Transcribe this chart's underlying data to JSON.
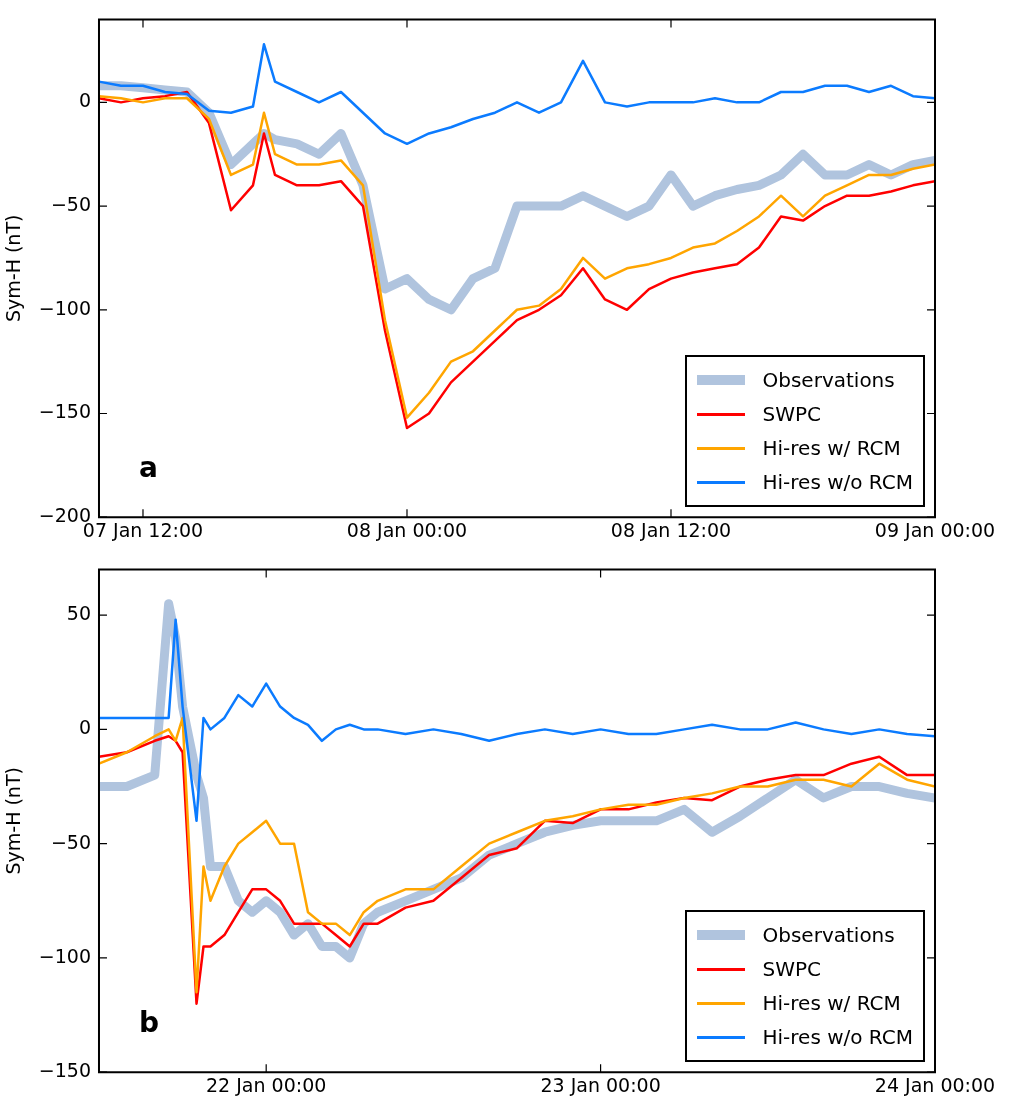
{
  "chart_data": [
    {
      "type": "line",
      "ylabel": "Sym-H (nT)",
      "annotations": [
        "a"
      ],
      "legend": "bottom right",
      "grid": false,
      "marker": "none",
      "line_style": "solid",
      "x": [
        "--01-07T10:00",
        "--01-07T11:00",
        "--01-07T12:00",
        "--01-07T13:00",
        "--01-07T14:00",
        "--01-07T15:00",
        "--01-07T16:00",
        "--01-07T17:00",
        "--01-07T17:30",
        "--01-07T18:00",
        "--01-07T19:00",
        "--01-07T20:00",
        "--01-07T21:00",
        "--01-07T22:00",
        "--01-07T23:00",
        "--01-08T00:00",
        "--01-08T01:00",
        "--01-08T02:00",
        "--01-08T03:00",
        "--01-08T04:00",
        "--01-08T05:00",
        "--01-08T06:00",
        "--01-08T07:00",
        "--01-08T08:00",
        "--01-08T09:00",
        "--01-08T10:00",
        "--01-08T11:00",
        "--01-08T12:00",
        "--01-08T13:00",
        "--01-08T14:00",
        "--01-08T15:00",
        "--01-08T16:00",
        "--01-08T17:00",
        "--01-08T18:00",
        "--01-08T19:00",
        "--01-08T20:00",
        "--01-08T21:00",
        "--01-08T22:00",
        "--01-08T23:00",
        "--01-09T00:00"
      ],
      "xlim": [
        "--01-07T10:00",
        "--01-09T00:00"
      ],
      "xticks": [
        {
          "value": "--01-07T12:00",
          "label": "07 Jan 12:00"
        },
        {
          "value": "--01-08T00:00",
          "label": "08 Jan 00:00"
        },
        {
          "value": "--01-08T12:00",
          "label": "08 Jan 12:00"
        },
        {
          "value": "--01-09T00:00",
          "label": "09 Jan 00:00"
        }
      ],
      "ylim": [
        -200,
        40
      ],
      "yticks": [
        -200,
        -150,
        -100,
        -50,
        0
      ],
      "series": [
        {
          "name": "Observations",
          "color": "#b0c4de",
          "values": [
            8,
            8,
            7,
            6,
            5,
            -5,
            -30,
            -20,
            -15,
            -18,
            -20,
            -25,
            -15,
            -40,
            -90,
            -85,
            -95,
            -100,
            -85,
            -80,
            -50,
            -50,
            -50,
            -45,
            -50,
            -55,
            -50,
            -35,
            -50,
            -45,
            -42,
            -40,
            -35,
            -25,
            -35,
            -35,
            -30,
            -35,
            -30,
            -28
          ]
        },
        {
          "name": "SWPC",
          "color": "#ff0000",
          "values": [
            2,
            0,
            2,
            3,
            5,
            -10,
            -52,
            -40,
            -15,
            -35,
            -40,
            -40,
            -38,
            -50,
            -110,
            -157,
            -150,
            -135,
            -125,
            -115,
            -105,
            -100,
            -93,
            -80,
            -95,
            -100,
            -90,
            -85,
            -82,
            -80,
            -78,
            -70,
            -55,
            -57,
            -50,
            -45,
            -45,
            -43,
            -40,
            -38
          ]
        },
        {
          "name": "Hi-res w/ RCM",
          "color": "#ffa500",
          "values": [
            3,
            2,
            0,
            2,
            2,
            -8,
            -35,
            -30,
            -5,
            -25,
            -30,
            -30,
            -28,
            -40,
            -105,
            -152,
            -140,
            -125,
            -120,
            -110,
            -100,
            -98,
            -90,
            -75,
            -85,
            -80,
            -78,
            -75,
            -70,
            -68,
            -62,
            -55,
            -45,
            -55,
            -45,
            -40,
            -35,
            -35,
            -32,
            -30
          ]
        },
        {
          "name": "Hi-res w/o RCM",
          "color": "#0b7bff",
          "values": [
            10,
            8,
            8,
            5,
            4,
            -4,
            -5,
            -2,
            28,
            10,
            5,
            0,
            5,
            -5,
            -15,
            -20,
            -15,
            -12,
            -8,
            -5,
            0,
            -5,
            0,
            20,
            0,
            -2,
            0,
            0,
            0,
            2,
            0,
            0,
            5,
            5,
            8,
            8,
            5,
            8,
            3,
            2
          ]
        }
      ]
    },
    {
      "type": "line",
      "ylabel": "Sym-H (nT)",
      "annotations": [
        "b"
      ],
      "legend": "bottom right",
      "grid": false,
      "marker": "none",
      "line_style": "solid",
      "x": [
        "--01-21T12:00",
        "--01-21T14:00",
        "--01-21T16:00",
        "--01-21T17:00",
        "--01-21T17:30",
        "--01-21T18:00",
        "--01-21T19:00",
        "--01-21T19:30",
        "--01-21T20:00",
        "--01-21T21:00",
        "--01-21T22:00",
        "--01-21T23:00",
        "--01-22T00:00",
        "--01-22T01:00",
        "--01-22T02:00",
        "--01-22T03:00",
        "--01-22T04:00",
        "--01-22T05:00",
        "--01-22T06:00",
        "--01-22T07:00",
        "--01-22T08:00",
        "--01-22T10:00",
        "--01-22T12:00",
        "--01-22T14:00",
        "--01-22T16:00",
        "--01-22T18:00",
        "--01-22T20:00",
        "--01-22T22:00",
        "--01-23T00:00",
        "--01-23T02:00",
        "--01-23T04:00",
        "--01-23T06:00",
        "--01-23T08:00",
        "--01-23T10:00",
        "--01-23T12:00",
        "--01-23T14:00",
        "--01-23T16:00",
        "--01-23T18:00",
        "--01-23T20:00",
        "--01-23T22:00",
        "--01-24T00:00"
      ],
      "xlim": [
        "--01-21T12:00",
        "--01-24T00:00"
      ],
      "xticks": [
        {
          "value": "--01-22T00:00",
          "label": "22 Jan 00:00"
        },
        {
          "value": "--01-23T00:00",
          "label": "23 Jan 00:00"
        },
        {
          "value": "--01-24T00:00",
          "label": "24 Jan 00:00"
        }
      ],
      "ylim": [
        -150,
        70
      ],
      "yticks": [
        -150,
        -100,
        -50,
        0,
        50
      ],
      "series": [
        {
          "name": "Observations",
          "color": "#b0c4de",
          "values": [
            -25,
            -25,
            -20,
            55,
            40,
            10,
            -20,
            -30,
            -60,
            -60,
            -75,
            -80,
            -75,
            -80,
            -90,
            -85,
            -95,
            -95,
            -100,
            -85,
            -80,
            -75,
            -70,
            -65,
            -55,
            -50,
            -45,
            -42,
            -40,
            -40,
            -40,
            -35,
            -45,
            -38,
            -30,
            -22,
            -30,
            -25,
            -25,
            -28,
            -30
          ]
        },
        {
          "name": "SWPC",
          "color": "#ff0000",
          "values": [
            -12,
            -10,
            -5,
            -3,
            -5,
            -10,
            -120,
            -95,
            -95,
            -90,
            -80,
            -70,
            -70,
            -75,
            -85,
            -85,
            -85,
            -90,
            -95,
            -85,
            -85,
            -78,
            -75,
            -65,
            -55,
            -52,
            -40,
            -41,
            -35,
            -35,
            -32,
            -30,
            -31,
            -25,
            -22,
            -20,
            -20,
            -15,
            -12,
            -20,
            -20
          ]
        },
        {
          "name": "Hi-res w/ RCM",
          "color": "#ffa500",
          "values": [
            -15,
            -10,
            -3,
            0,
            -5,
            5,
            -115,
            -60,
            -75,
            -60,
            -50,
            -45,
            -40,
            -50,
            -50,
            -80,
            -85,
            -85,
            -90,
            -80,
            -75,
            -70,
            -70,
            -60,
            -50,
            -45,
            -40,
            -38,
            -35,
            -33,
            -33,
            -30,
            -28,
            -25,
            -25,
            -22,
            -22,
            -25,
            -15,
            -22,
            -25
          ]
        },
        {
          "name": "Hi-res w/o RCM",
          "color": "#0b7bff",
          "values": [
            5,
            5,
            5,
            5,
            48,
            10,
            -40,
            5,
            0,
            5,
            15,
            10,
            20,
            10,
            5,
            2,
            -5,
            0,
            2,
            0,
            0,
            -2,
            0,
            -2,
            -5,
            -2,
            0,
            -2,
            0,
            -2,
            -2,
            0,
            2,
            0,
            0,
            3,
            0,
            -2,
            0,
            -2,
            -3
          ]
        }
      ]
    }
  ]
}
